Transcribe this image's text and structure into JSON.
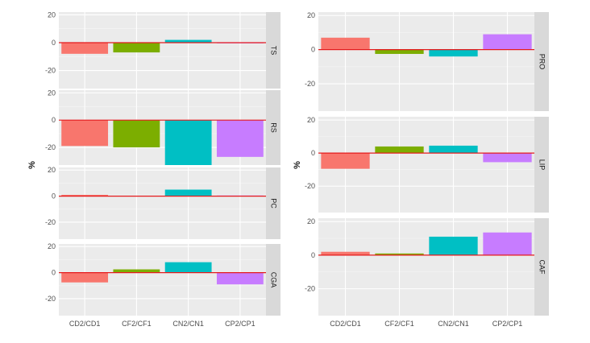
{
  "chart_data": [
    {
      "type": "bar",
      "title": "",
      "xlabel": "",
      "ylabel": "%",
      "categories": [
        "CD2/CD1",
        "CF2/CF1",
        "CN2/CN1",
        "CP2/CP1"
      ],
      "colors": [
        "#F8766D",
        "#7CAE00",
        "#00BFC4",
        "#C77CFF"
      ],
      "reference_line": {
        "y": 0,
        "color": "#e41a1c"
      },
      "facets": [
        {
          "label": "TS",
          "ylim": [
            -33,
            22
          ],
          "yticks": [
            -20,
            0,
            20
          ],
          "yticklabels": [
            "-20",
            "0",
            "20"
          ],
          "values": [
            -8,
            -7,
            2,
            0
          ]
        },
        {
          "label": "RS",
          "ylim": [
            -33,
            22
          ],
          "yticks": [
            -20,
            0,
            20
          ],
          "yticklabels": [
            "-20",
            "0",
            "20"
          ],
          "values": [
            -19,
            -20,
            -33,
            -27
          ]
        },
        {
          "label": "PC",
          "ylim": [
            -33,
            22
          ],
          "yticks": [
            -20,
            0,
            20
          ],
          "yticklabels": [
            "-20",
            "0",
            "20"
          ],
          "values": [
            1,
            0.3,
            5,
            0.5
          ]
        },
        {
          "label": "CGA",
          "ylim": [
            -33,
            22
          ],
          "yticks": [
            -20,
            0,
            20
          ],
          "yticklabels": [
            "-20",
            "0",
            "20"
          ],
          "values": [
            -7.5,
            2.5,
            8,
            -9
          ]
        }
      ]
    },
    {
      "type": "bar",
      "title": "",
      "xlabel": "",
      "ylabel": "%",
      "categories": [
        "CD2/CD1",
        "CF2/CF1",
        "CN2/CN1",
        "CP2/CP1"
      ],
      "colors": [
        "#F8766D",
        "#7CAE00",
        "#00BFC4",
        "#C77CFF"
      ],
      "reference_line": {
        "y": 0,
        "color": "#e41a1c"
      },
      "facets": [
        {
          "label": "PRO",
          "ylim": [
            -36,
            22
          ],
          "yticks": [
            -20,
            0,
            20
          ],
          "yticklabels": [
            "-20",
            "0",
            "20"
          ],
          "values": [
            7,
            -2.5,
            -4,
            9
          ]
        },
        {
          "label": "LIP",
          "ylim": [
            -36,
            22
          ],
          "yticks": [
            -20,
            0,
            20
          ],
          "yticklabels": [
            "-20",
            "0",
            "20"
          ],
          "values": [
            -9.5,
            4,
            4.5,
            -5.5
          ]
        },
        {
          "label": "CAF",
          "ylim": [
            -36,
            22
          ],
          "yticks": [
            -20,
            0,
            20
          ],
          "yticklabels": [
            "-20",
            "0",
            "20"
          ],
          "values": [
            2,
            1,
            11,
            13.5
          ]
        }
      ]
    }
  ]
}
